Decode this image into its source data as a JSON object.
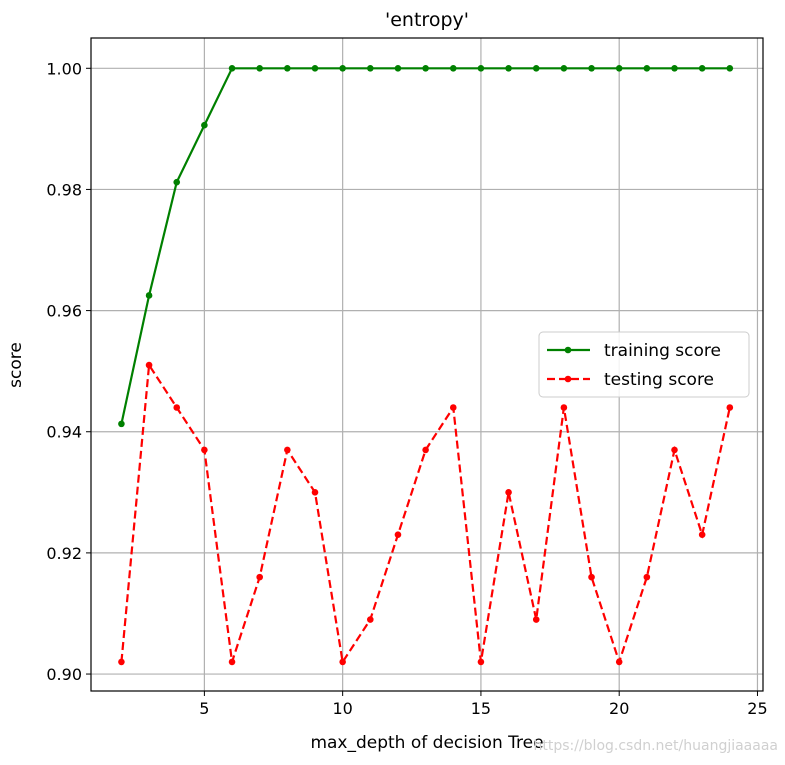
{
  "chart_data": {
    "type": "line",
    "title": "'entropy'",
    "xlabel": "max_depth of decision Tree",
    "ylabel": "score",
    "xlim": [
      0.9,
      25.2
    ],
    "ylim": [
      0.8972,
      1.005
    ],
    "xticks": [
      5,
      10,
      15,
      20,
      25
    ],
    "xtick_labels": [
      "5",
      "10",
      "15",
      "20",
      "25"
    ],
    "yticks": [
      0.9,
      0.92,
      0.94,
      0.96,
      0.98,
      1.0
    ],
    "ytick_labels": [
      "0.90",
      "0.92",
      "0.94",
      "0.96",
      "0.98",
      "1.00"
    ],
    "grid": true,
    "legend_placement": "center-right",
    "x": [
      2,
      3,
      4,
      5,
      6,
      7,
      8,
      9,
      10,
      11,
      12,
      13,
      14,
      15,
      16,
      17,
      18,
      19,
      20,
      21,
      22,
      23,
      24
    ],
    "series": [
      {
        "name": "training score",
        "color": "#008000",
        "style": "solid",
        "values": [
          0.9413,
          0.9625,
          0.9812,
          0.9906,
          1,
          1,
          1,
          1,
          1,
          1,
          1,
          1,
          1,
          1,
          1,
          1,
          1,
          1,
          1,
          1,
          1,
          1,
          1
        ]
      },
      {
        "name": "testing score",
        "color": "#ff0000",
        "style": "dashed",
        "values": [
          0.902,
          0.951,
          0.944,
          0.937,
          0.902,
          0.916,
          0.937,
          0.93,
          0.902,
          0.909,
          0.923,
          0.937,
          0.944,
          0.902,
          0.93,
          0.909,
          0.944,
          0.916,
          0.902,
          0.916,
          0.937,
          0.923,
          0.944
        ]
      }
    ]
  },
  "watermark": "https://blog.csdn.net/huangjiaaaaa"
}
